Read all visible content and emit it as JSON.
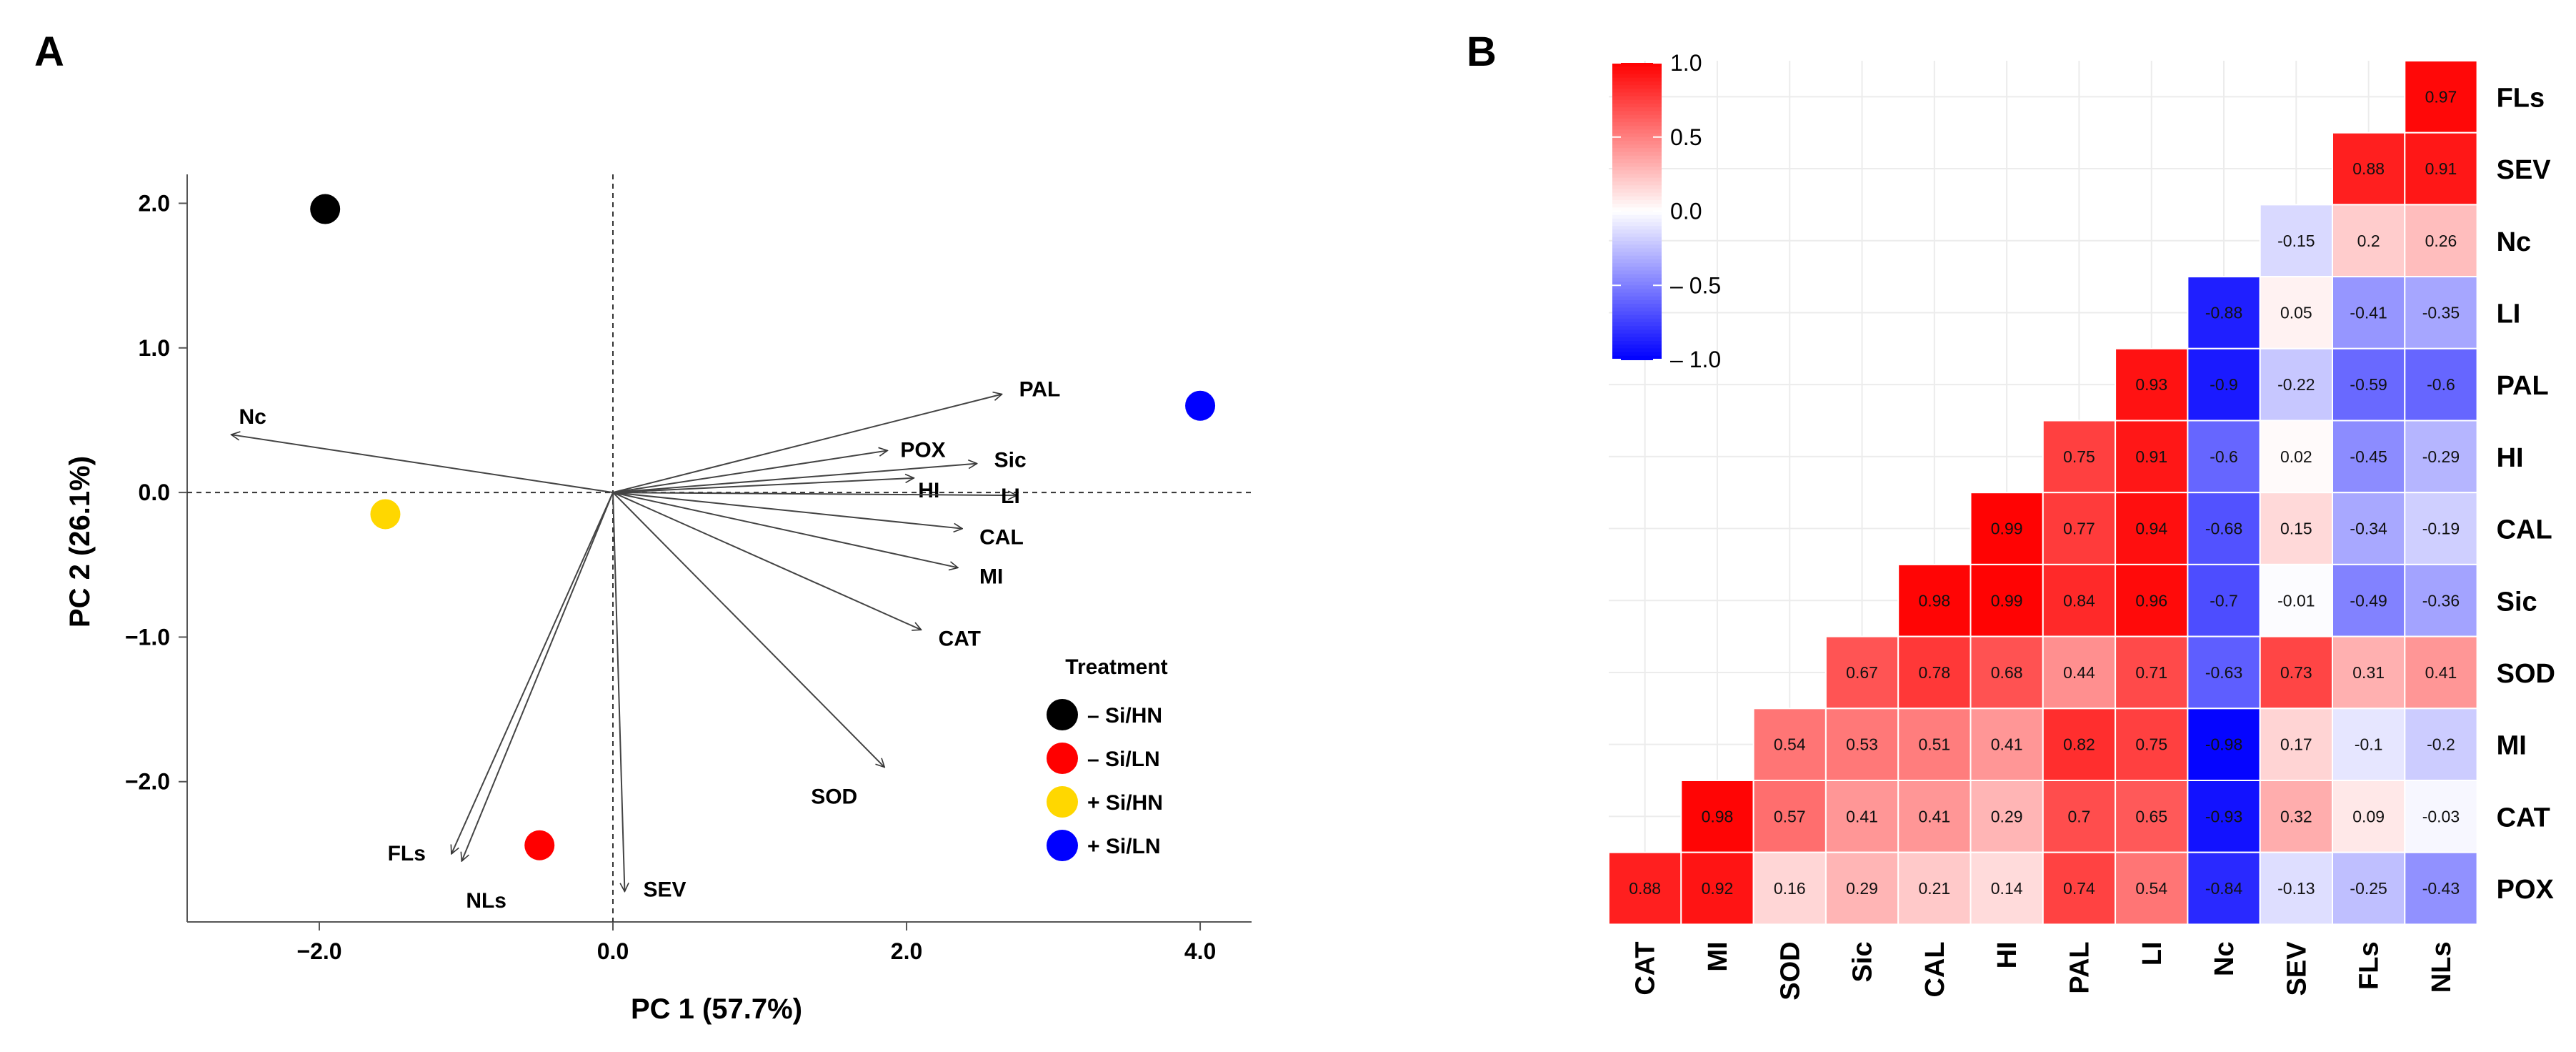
{
  "chart_data": [
    {
      "panel": "A",
      "type": "scatter",
      "xlabel": "PC 1 (57.7%)",
      "ylabel": "PC 2 (26.1%)",
      "xlim": [
        -2.9,
        4.35
      ],
      "ylim": [
        -2.97,
        2.2
      ],
      "xticks": [
        {
          "v": -2.0,
          "label": "−2.0"
        },
        {
          "v": 0.0,
          "label": "0.0"
        },
        {
          "v": 2.0,
          "label": "2.0"
        },
        {
          "v": 4.0,
          "label": "4.0"
        }
      ],
      "yticks": [
        {
          "v": 2.0,
          "label": "2.0"
        },
        {
          "v": 1.0,
          "label": "1.0"
        },
        {
          "v": 0.0,
          "label": "0.0"
        },
        {
          "v": -1.0,
          "label": "−1.0"
        },
        {
          "v": -2.0,
          "label": "−2.0"
        }
      ],
      "points": [
        {
          "name": "– Si/HN",
          "x": -1.96,
          "y": 1.96,
          "color": "#000000"
        },
        {
          "name": "– Si/LN",
          "x": -0.5,
          "y": -2.44,
          "color": "#ff0000"
        },
        {
          "name": "+ Si/HN",
          "x": -1.55,
          "y": -0.15,
          "color": "#ffd700"
        },
        {
          "name": "+ Si/LN",
          "x": 4.0,
          "y": 0.6,
          "color": "#0000ff"
        }
      ],
      "loadings": [
        {
          "name": "Nc",
          "x": -2.6,
          "y": 0.4
        },
        {
          "name": "PAL",
          "x": 2.65,
          "y": 0.68
        },
        {
          "name": "POX",
          "x": 1.87,
          "y": 0.29
        },
        {
          "name": "Sic",
          "x": 2.48,
          "y": 0.2
        },
        {
          "name": "HI",
          "x": 2.05,
          "y": 0.1
        },
        {
          "name": "LI",
          "x": 2.75,
          "y": -0.02
        },
        {
          "name": "CAL",
          "x": 2.38,
          "y": -0.25
        },
        {
          "name": "MI",
          "x": 2.35,
          "y": -0.52
        },
        {
          "name": "CAT",
          "x": 2.1,
          "y": -0.95
        },
        {
          "name": "SOD",
          "x": 1.85,
          "y": -1.9
        },
        {
          "name": "FLs",
          "x": -1.1,
          "y": -2.5
        },
        {
          "name": "NLs",
          "x": -1.03,
          "y": -2.55
        },
        {
          "name": "SEV",
          "x": 0.08,
          "y": -2.76
        }
      ],
      "legend": {
        "title": "Treatment",
        "position": "bottom-right",
        "entries": [
          "– Si/HN",
          "– Si/LN",
          "+ Si/HN",
          "+ Si/LN"
        ]
      }
    },
    {
      "panel": "B",
      "type": "heatmap",
      "x_labels": [
        "CAT",
        "MI",
        "SOD",
        "Sic",
        "CAL",
        "HI",
        "PAL",
        "LI",
        "Nc",
        "SEV",
        "FLs",
        "NLs"
      ],
      "y_labels": [
        "FLs",
        "SEV",
        "Nc",
        "LI",
        "PAL",
        "HI",
        "CAL",
        "Sic",
        "SOD",
        "MI",
        "CAT",
        "POX"
      ],
      "cells": [
        {
          "row": "FLs",
          "col": "NLs",
          "v": 0.97
        },
        {
          "row": "SEV",
          "col": "FLs",
          "v": 0.88
        },
        {
          "row": "SEV",
          "col": "NLs",
          "v": 0.91
        },
        {
          "row": "Nc",
          "col": "SEV",
          "v": -0.15
        },
        {
          "row": "Nc",
          "col": "FLs",
          "v": 0.2
        },
        {
          "row": "Nc",
          "col": "NLs",
          "v": 0.26
        },
        {
          "row": "LI",
          "col": "Nc",
          "v": -0.88
        },
        {
          "row": "LI",
          "col": "SEV",
          "v": 0.05
        },
        {
          "row": "LI",
          "col": "FLs",
          "v": -0.41
        },
        {
          "row": "LI",
          "col": "NLs",
          "v": -0.35
        },
        {
          "row": "PAL",
          "col": "LI",
          "v": 0.93
        },
        {
          "row": "PAL",
          "col": "Nc",
          "v": -0.9
        },
        {
          "row": "PAL",
          "col": "SEV",
          "v": -0.22
        },
        {
          "row": "PAL",
          "col": "FLs",
          "v": -0.59
        },
        {
          "row": "PAL",
          "col": "NLs",
          "v": -0.6
        },
        {
          "row": "HI",
          "col": "PAL",
          "v": 0.75
        },
        {
          "row": "HI",
          "col": "LI",
          "v": 0.91
        },
        {
          "row": "HI",
          "col": "Nc",
          "v": -0.6
        },
        {
          "row": "HI",
          "col": "SEV",
          "v": 0.02
        },
        {
          "row": "HI",
          "col": "FLs",
          "v": -0.45
        },
        {
          "row": "HI",
          "col": "NLs",
          "v": -0.29
        },
        {
          "row": "CAL",
          "col": "HI",
          "v": 0.99
        },
        {
          "row": "CAL",
          "col": "PAL",
          "v": 0.77
        },
        {
          "row": "CAL",
          "col": "LI",
          "v": 0.94
        },
        {
          "row": "CAL",
          "col": "Nc",
          "v": -0.68
        },
        {
          "row": "CAL",
          "col": "SEV",
          "v": 0.15
        },
        {
          "row": "CAL",
          "col": "FLs",
          "v": -0.34
        },
        {
          "row": "CAL",
          "col": "NLs",
          "v": -0.19
        },
        {
          "row": "Sic",
          "col": "CAL",
          "v": 0.98
        },
        {
          "row": "Sic",
          "col": "HI",
          "v": 0.99
        },
        {
          "row": "Sic",
          "col": "PAL",
          "v": 0.84
        },
        {
          "row": "Sic",
          "col": "LI",
          "v": 0.96
        },
        {
          "row": "Sic",
          "col": "Nc",
          "v": -0.7
        },
        {
          "row": "Sic",
          "col": "SEV",
          "v": -0.01
        },
        {
          "row": "Sic",
          "col": "FLs",
          "v": -0.49
        },
        {
          "row": "Sic",
          "col": "NLs",
          "v": -0.36
        },
        {
          "row": "SOD",
          "col": "Sic",
          "v": 0.67
        },
        {
          "row": "SOD",
          "col": "CAL",
          "v": 0.78
        },
        {
          "row": "SOD",
          "col": "HI",
          "v": 0.68
        },
        {
          "row": "SOD",
          "col": "PAL",
          "v": 0.44
        },
        {
          "row": "SOD",
          "col": "LI",
          "v": 0.71
        },
        {
          "row": "SOD",
          "col": "Nc",
          "v": -0.63
        },
        {
          "row": "SOD",
          "col": "SEV",
          "v": 0.73
        },
        {
          "row": "SOD",
          "col": "FLs",
          "v": 0.31
        },
        {
          "row": "SOD",
          "col": "NLs",
          "v": 0.41
        },
        {
          "row": "MI",
          "col": "SOD",
          "v": 0.54
        },
        {
          "row": "MI",
          "col": "Sic",
          "v": 0.53
        },
        {
          "row": "MI",
          "col": "CAL",
          "v": 0.51
        },
        {
          "row": "MI",
          "col": "HI",
          "v": 0.41
        },
        {
          "row": "MI",
          "col": "PAL",
          "v": 0.82
        },
        {
          "row": "MI",
          "col": "LI",
          "v": 0.75
        },
        {
          "row": "MI",
          "col": "Nc",
          "v": -0.98
        },
        {
          "row": "MI",
          "col": "SEV",
          "v": 0.17
        },
        {
          "row": "MI",
          "col": "FLs",
          "v": -0.1
        },
        {
          "row": "MI",
          "col": "NLs",
          "v": -0.2
        },
        {
          "row": "CAT",
          "col": "MI",
          "v": 0.98
        },
        {
          "row": "CAT",
          "col": "SOD",
          "v": 0.57
        },
        {
          "row": "CAT",
          "col": "Sic",
          "v": 0.41
        },
        {
          "row": "CAT",
          "col": "CAL",
          "v": 0.41
        },
        {
          "row": "CAT",
          "col": "HI",
          "v": 0.29
        },
        {
          "row": "CAT",
          "col": "PAL",
          "v": 0.7
        },
        {
          "row": "CAT",
          "col": "LI",
          "v": 0.65
        },
        {
          "row": "CAT",
          "col": "Nc",
          "v": -0.93
        },
        {
          "row": "CAT",
          "col": "SEV",
          "v": 0.32
        },
        {
          "row": "CAT",
          "col": "FLs",
          "v": 0.09
        },
        {
          "row": "CAT",
          "col": "NLs",
          "v": -0.03
        },
        {
          "row": "POX",
          "col": "CAT",
          "v": 0.88
        },
        {
          "row": "POX",
          "col": "MI",
          "v": 0.92
        },
        {
          "row": "POX",
          "col": "SOD",
          "v": 0.16
        },
        {
          "row": "POX",
          "col": "Sic",
          "v": 0.29
        },
        {
          "row": "POX",
          "col": "CAL",
          "v": 0.21
        },
        {
          "row": "POX",
          "col": "HI",
          "v": 0.14
        },
        {
          "row": "POX",
          "col": "PAL",
          "v": 0.74
        },
        {
          "row": "POX",
          "col": "LI",
          "v": 0.54
        },
        {
          "row": "POX",
          "col": "Nc",
          "v": -0.84
        },
        {
          "row": "POX",
          "col": "SEV",
          "v": -0.13
        },
        {
          "row": "POX",
          "col": "FLs",
          "v": -0.25
        },
        {
          "row": "POX",
          "col": "NLs",
          "v": -0.43
        }
      ],
      "colorbar": {
        "range": [
          -1.0,
          1.0
        ],
        "ticks": [
          {
            "v": 1.0,
            "label": "1.0"
          },
          {
            "v": 0.5,
            "label": "0.5"
          },
          {
            "v": 0.0,
            "label": "0.0"
          },
          {
            "v": -0.5,
            "label": "– 0.5"
          },
          {
            "v": -1.0,
            "label": "– 1.0"
          }
        ],
        "low_color": "#0000ff",
        "mid_color": "#ffffff",
        "high_color": "#ff0000"
      }
    }
  ],
  "panels": {
    "a_letter": "A",
    "b_letter": "B"
  }
}
